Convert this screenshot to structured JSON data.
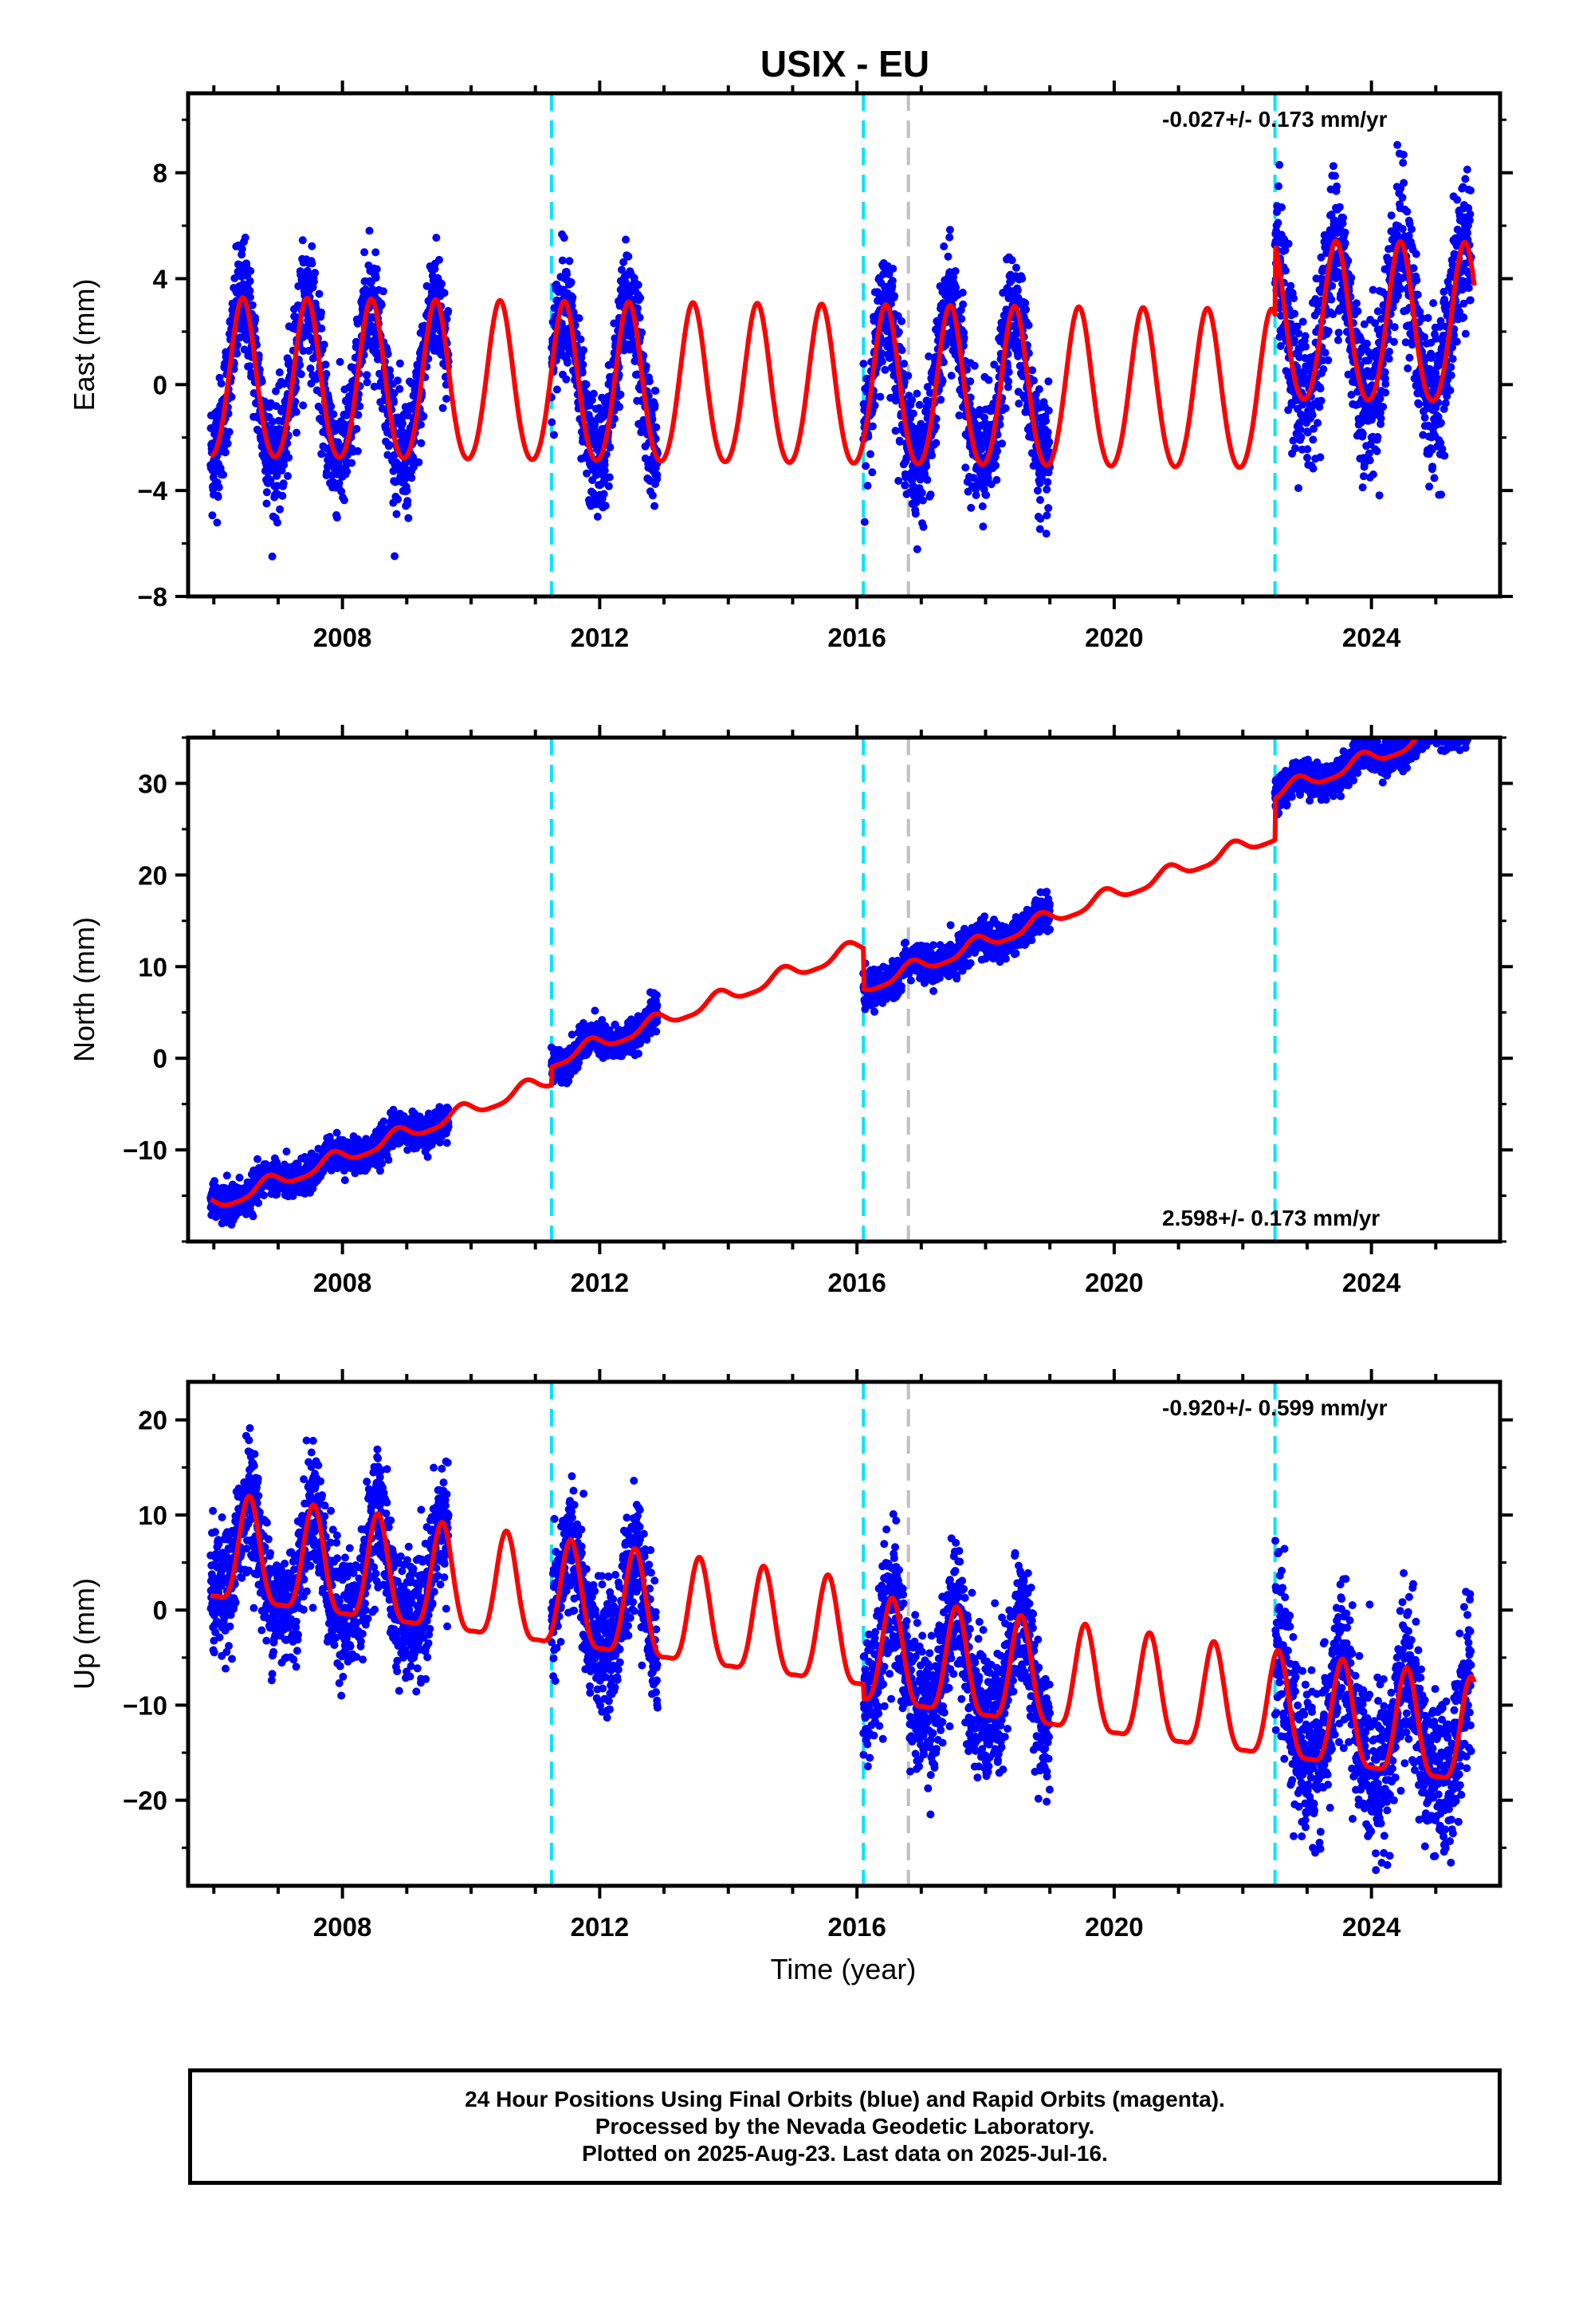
{
  "title": "USIX - EU",
  "x_label": "Time (year)",
  "footer": {
    "line1": "24 Hour Positions Using Final Orbits (blue) and Rapid Orbits (magenta).",
    "line2": "Processed by the Nevada Geodetic Laboratory.",
    "line3": "Plotted on 2025-Aug-23. Last data on 2025-Jul-16."
  },
  "colors": {
    "points": "#0000ff",
    "model": "#ff0000",
    "offset": "#00e5ff",
    "equipment": "#c0c0c0"
  },
  "chart_data": [
    {
      "type": "scatter",
      "name": "east",
      "ylabel": "East (mm)",
      "rate_label": "-0.027+/- 0.173 mm/yr",
      "rate_position": "top-right",
      "xlim": [
        2005.6,
        2026.0
      ],
      "ylim": [
        -8,
        11
      ],
      "yticks": [
        -8,
        -4,
        0,
        4,
        8
      ],
      "xticks": [
        2008,
        2012,
        2016,
        2020,
        2024
      ],
      "offset_lines": [
        2011.25,
        2016.1,
        2022.5
      ],
      "equipment_lines": [
        2016.8
      ],
      "data_spans": [
        [
          2005.95,
          2009.65
        ],
        [
          2011.25,
          2012.9
        ],
        [
          2016.1,
          2019.0
        ],
        [
          2022.5,
          2025.55
        ]
      ],
      "model": {
        "rate": -0.027,
        "segment_offsets": [
          [
            2005.6,
            0.0
          ],
          [
            2022.5,
            2.6
          ]
        ],
        "annual_amplitude": 3.0,
        "annual_peak": 0.45,
        "semiannual_amplitude": 0.3,
        "noise_sd": 1.1,
        "noise_growth": [
          [
            2005.6,
            1.1
          ],
          [
            2022.5,
            1.4
          ]
        ]
      }
    },
    {
      "type": "scatter",
      "name": "north",
      "ylabel": "North (mm)",
      "rate_label": "2.598+/- 0.173 mm/yr",
      "rate_position": "bottom-right",
      "xlim": [
        2005.6,
        2026.0
      ],
      "ylim": [
        -20,
        35
      ],
      "yticks": [
        -10,
        0,
        10,
        20,
        30
      ],
      "xticks": [
        2008,
        2012,
        2016,
        2020,
        2024
      ],
      "offset_lines": [
        2011.25,
        2016.1,
        2022.5
      ],
      "equipment_lines": [
        2016.8
      ],
      "data_spans": [
        [
          2005.95,
          2009.65
        ],
        [
          2011.25,
          2012.9
        ],
        [
          2016.1,
          2019.0
        ],
        [
          2022.5,
          2025.55
        ]
      ],
      "model": {
        "rate": 2.598,
        "value_at_2006": -16.0,
        "segment_offsets": [
          [
            2005.6,
            0.0
          ],
          [
            2011.25,
            2.0
          ],
          [
            2016.1,
            -2.5
          ],
          [
            2022.5,
            2.0
          ]
        ],
        "annual_amplitude": 0.8,
        "annual_peak": 0.85,
        "semiannual_amplitude": 0.2,
        "noise_sd": 0.9,
        "noise_growth": [
          [
            2005.6,
            0.9
          ]
        ]
      }
    },
    {
      "type": "scatter",
      "name": "up",
      "ylabel": "Up (mm)",
      "rate_label": "-0.920+/- 0.599 mm/yr",
      "rate_position": "top-right",
      "xlim": [
        2005.6,
        2026.0
      ],
      "ylim": [
        -29,
        24
      ],
      "yticks": [
        -20,
        -10,
        0,
        10,
        20
      ],
      "xticks": [
        2008,
        2012,
        2016,
        2020,
        2024
      ],
      "offset_lines": [
        2011.25,
        2016.1,
        2022.5
      ],
      "equipment_lines": [
        2016.8
      ],
      "data_spans": [
        [
          2005.95,
          2009.65
        ],
        [
          2011.25,
          2012.9
        ],
        [
          2016.1,
          2019.0
        ],
        [
          2022.5,
          2025.55
        ]
      ],
      "model": {
        "rate": -0.92,
        "value_at_2006": 5.5,
        "segment_offsets": [
          [
            2005.6,
            0.0
          ],
          [
            2016.1,
            -1.5
          ]
        ],
        "annual_amplitude": 5.5,
        "annual_peak": 0.55,
        "semiannual_amplitude": 1.5,
        "noise_sd": 3.2,
        "noise_growth": [
          [
            2005.6,
            3.2
          ],
          [
            2016.1,
            3.6
          ],
          [
            2022.5,
            4.0
          ]
        ]
      }
    }
  ]
}
